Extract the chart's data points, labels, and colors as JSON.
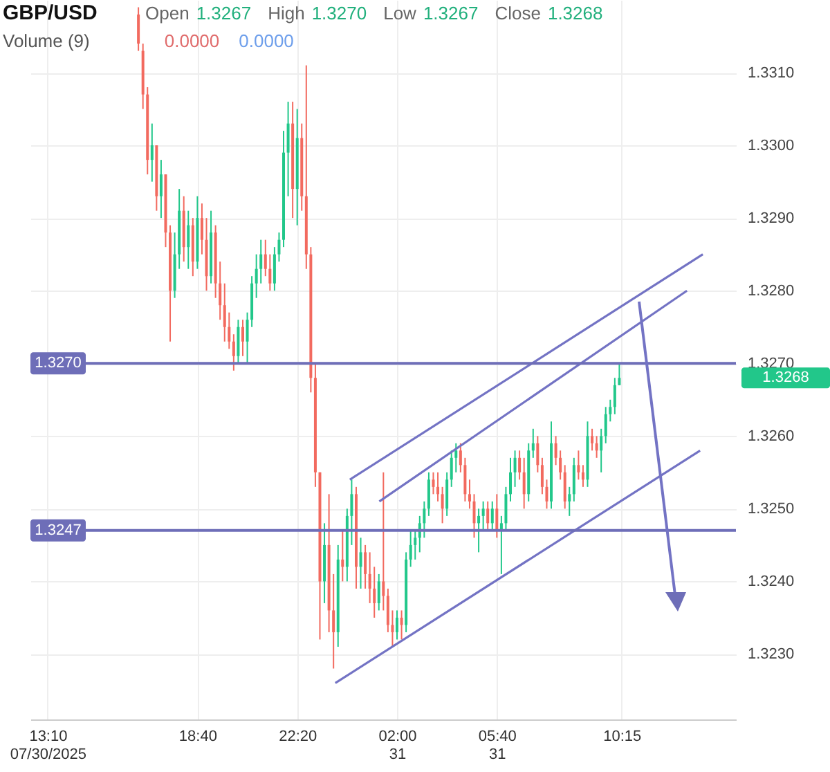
{
  "chart_data": {
    "type": "candlestick",
    "title": "GBP/USD",
    "x": [
      "2025-07-30T16:30",
      "2025-07-30T16:40",
      "2025-07-30T16:50",
      "2025-07-30T17:00",
      "2025-07-30T17:10",
      "2025-07-30T17:20",
      "2025-07-30T17:30",
      "2025-07-30T17:40",
      "2025-07-30T17:50",
      "2025-07-30T18:00",
      "2025-07-30T18:10",
      "2025-07-30T18:20",
      "2025-07-30T18:30",
      "2025-07-30T18:40",
      "2025-07-30T18:50",
      "2025-07-30T19:00",
      "2025-07-30T19:10",
      "2025-07-30T19:20",
      "2025-07-30T19:30",
      "2025-07-30T19:40",
      "2025-07-30T19:50",
      "2025-07-30T20:00",
      "2025-07-30T20:10",
      "2025-07-30T20:20",
      "2025-07-30T20:30",
      "2025-07-30T20:40",
      "2025-07-30T20:50",
      "2025-07-30T21:00",
      "2025-07-30T21:10",
      "2025-07-30T21:20",
      "2025-07-30T21:30",
      "2025-07-30T21:40",
      "2025-07-30T21:50",
      "2025-07-30T22:00",
      "2025-07-30T22:10",
      "2025-07-30T22:20",
      "2025-07-30T22:30",
      "2025-07-30T22:40",
      "2025-07-30T22:50",
      "2025-07-30T23:00",
      "2025-07-30T23:10",
      "2025-07-30T23:20",
      "2025-07-30T23:30",
      "2025-07-30T23:40",
      "2025-07-30T23:50",
      "2025-07-31T00:00",
      "2025-07-31T00:10",
      "2025-07-31T00:20",
      "2025-07-31T00:30",
      "2025-07-31T00:40",
      "2025-07-31T00:50",
      "2025-07-31T01:00",
      "2025-07-31T01:10",
      "2025-07-31T01:20",
      "2025-07-31T01:30",
      "2025-07-31T01:40",
      "2025-07-31T01:50",
      "2025-07-31T02:00",
      "2025-07-31T02:10",
      "2025-07-31T02:20",
      "2025-07-31T02:30",
      "2025-07-31T02:40",
      "2025-07-31T02:50",
      "2025-07-31T03:00",
      "2025-07-31T03:10",
      "2025-07-31T03:20",
      "2025-07-31T03:30",
      "2025-07-31T03:40",
      "2025-07-31T03:50",
      "2025-07-31T04:00",
      "2025-07-31T04:10",
      "2025-07-31T04:20",
      "2025-07-31T04:30",
      "2025-07-31T04:40",
      "2025-07-31T04:50",
      "2025-07-31T05:00",
      "2025-07-31T05:10",
      "2025-07-31T05:20",
      "2025-07-31T05:30",
      "2025-07-31T05:40",
      "2025-07-31T05:50",
      "2025-07-31T06:00",
      "2025-07-31T06:10",
      "2025-07-31T06:20",
      "2025-07-31T06:30",
      "2025-07-31T06:40",
      "2025-07-31T06:50",
      "2025-07-31T07:00",
      "2025-07-31T07:10",
      "2025-07-31T07:20",
      "2025-07-31T07:30",
      "2025-07-31T07:40",
      "2025-07-31T07:50",
      "2025-07-31T08:00",
      "2025-07-31T08:10",
      "2025-07-31T08:20",
      "2025-07-31T08:30",
      "2025-07-31T08:40",
      "2025-07-31T08:50",
      "2025-07-31T09:00",
      "2025-07-31T09:10",
      "2025-07-31T09:20",
      "2025-07-31T09:30",
      "2025-07-31T09:40",
      "2025-07-31T09:50",
      "2025-07-31T10:00",
      "2025-07-31T10:10"
    ],
    "ohlc": [
      [
        1.3318,
        1.3319,
        1.3313,
        1.3314
      ],
      [
        1.3313,
        1.3314,
        1.3305,
        1.3307
      ],
      [
        1.3307,
        1.3308,
        1.3296,
        1.3298
      ],
      [
        1.3298,
        1.3303,
        1.3295,
        1.33
      ],
      [
        1.33,
        1.33,
        1.3291,
        1.3293
      ],
      [
        1.3293,
        1.3298,
        1.329,
        1.3296
      ],
      [
        1.3296,
        1.3296,
        1.3286,
        1.3288
      ],
      [
        1.3288,
        1.3289,
        1.3273,
        1.328
      ],
      [
        1.328,
        1.3288,
        1.3279,
        1.3285
      ],
      [
        1.3285,
        1.3294,
        1.3283,
        1.3291
      ],
      [
        1.3291,
        1.3293,
        1.3284,
        1.3286
      ],
      [
        1.3286,
        1.3291,
        1.3283,
        1.3289
      ],
      [
        1.3289,
        1.329,
        1.3282,
        1.3284
      ],
      [
        1.3284,
        1.3293,
        1.3283,
        1.329
      ],
      [
        1.329,
        1.3292,
        1.3285,
        1.3287
      ],
      [
        1.3287,
        1.329,
        1.328,
        1.3282
      ],
      [
        1.3282,
        1.3291,
        1.3281,
        1.3288
      ],
      [
        1.3288,
        1.3289,
        1.3279,
        1.3281
      ],
      [
        1.3281,
        1.3284,
        1.3276,
        1.3278
      ],
      [
        1.3278,
        1.3281,
        1.3273,
        1.3275
      ],
      [
        1.3275,
        1.3277,
        1.3272,
        1.3273
      ],
      [
        1.3273,
        1.3274,
        1.3269,
        1.3271
      ],
      [
        1.3271,
        1.3276,
        1.327,
        1.3275
      ],
      [
        1.3275,
        1.3276,
        1.3271,
        1.3273
      ],
      [
        1.3273,
        1.3277,
        1.327,
        1.3276
      ],
      [
        1.3276,
        1.3282,
        1.3275,
        1.3281
      ],
      [
        1.3281,
        1.3285,
        1.3279,
        1.3283
      ],
      [
        1.3283,
        1.3287,
        1.3281,
        1.3285
      ],
      [
        1.3285,
        1.3287,
        1.3282,
        1.3283
      ],
      [
        1.3283,
        1.3285,
        1.328,
        1.3281
      ],
      [
        1.3281,
        1.3286,
        1.328,
        1.3285
      ],
      [
        1.3285,
        1.3288,
        1.3284,
        1.3287
      ],
      [
        1.3287,
        1.3302,
        1.3286,
        1.3299
      ],
      [
        1.3299,
        1.3306,
        1.3293,
        1.3303
      ],
      [
        1.3303,
        1.3306,
        1.329,
        1.3294
      ],
      [
        1.3294,
        1.3305,
        1.3289,
        1.3301
      ],
      [
        1.3301,
        1.3303,
        1.3291,
        1.3293
      ],
      [
        1.3293,
        1.3311,
        1.3283,
        1.3285
      ],
      [
        1.3285,
        1.3286,
        1.3266,
        1.3268
      ],
      [
        1.3268,
        1.327,
        1.3253,
        1.3255
      ],
      [
        1.3255,
        1.3255,
        1.3232,
        1.324
      ],
      [
        1.324,
        1.3248,
        1.3237,
        1.3245
      ],
      [
        1.3245,
        1.3252,
        1.3233,
        1.3236
      ],
      [
        1.3236,
        1.3241,
        1.3228,
        1.3233
      ],
      [
        1.3233,
        1.3245,
        1.3231,
        1.3243
      ],
      [
        1.3243,
        1.3247,
        1.324,
        1.3242
      ],
      [
        1.3242,
        1.325,
        1.324,
        1.3249
      ],
      [
        1.3249,
        1.3254,
        1.3245,
        1.3252
      ],
      [
        1.3252,
        1.3253,
        1.3239,
        1.3242
      ],
      [
        1.3242,
        1.3246,
        1.3239,
        1.3244
      ],
      [
        1.3244,
        1.3245,
        1.3239,
        1.3241
      ],
      [
        1.3241,
        1.3244,
        1.3237,
        1.3239
      ],
      [
        1.3239,
        1.3242,
        1.3235,
        1.3237
      ],
      [
        1.3237,
        1.3241,
        1.3236,
        1.324
      ],
      [
        1.324,
        1.3255,
        1.3236,
        1.3238
      ],
      [
        1.3238,
        1.3239,
        1.3233,
        1.3234
      ],
      [
        1.3234,
        1.3236,
        1.3231,
        1.3233
      ],
      [
        1.3233,
        1.3236,
        1.3232,
        1.3235
      ],
      [
        1.3235,
        1.3236,
        1.3232,
        1.3234
      ],
      [
        1.3234,
        1.3244,
        1.3233,
        1.3243
      ],
      [
        1.3243,
        1.3247,
        1.3242,
        1.3245
      ],
      [
        1.3245,
        1.3247,
        1.3243,
        1.3246
      ],
      [
        1.3246,
        1.3249,
        1.3244,
        1.3248
      ],
      [
        1.3248,
        1.3251,
        1.3246,
        1.325
      ],
      [
        1.325,
        1.3255,
        1.3249,
        1.3254
      ],
      [
        1.3254,
        1.3255,
        1.3252,
        1.3253
      ],
      [
        1.3253,
        1.3255,
        1.3251,
        1.3252
      ],
      [
        1.3252,
        1.3253,
        1.3248,
        1.325
      ],
      [
        1.325,
        1.3255,
        1.3249,
        1.3254
      ],
      [
        1.3254,
        1.3258,
        1.3253,
        1.3257
      ],
      [
        1.3257,
        1.3259,
        1.3255,
        1.3258
      ],
      [
        1.3258,
        1.3259,
        1.3255,
        1.3256
      ],
      [
        1.3256,
        1.3257,
        1.3251,
        1.3252
      ],
      [
        1.3252,
        1.3254,
        1.325,
        1.3251
      ],
      [
        1.3251,
        1.3252,
        1.3246,
        1.3248
      ],
      [
        1.3248,
        1.325,
        1.3244,
        1.3249
      ],
      [
        1.3249,
        1.3251,
        1.3247,
        1.325
      ],
      [
        1.325,
        1.3251,
        1.3247,
        1.3248
      ],
      [
        1.3248,
        1.3251,
        1.3247,
        1.325
      ],
      [
        1.325,
        1.3252,
        1.3246,
        1.3247
      ],
      [
        1.3247,
        1.3249,
        1.3241,
        1.3248
      ],
      [
        1.3248,
        1.3253,
        1.3247,
        1.3252
      ],
      [
        1.3252,
        1.3257,
        1.3251,
        1.3255
      ],
      [
        1.3255,
        1.3258,
        1.3253,
        1.3257
      ],
      [
        1.3257,
        1.3258,
        1.3254,
        1.3255
      ],
      [
        1.3255,
        1.3257,
        1.325,
        1.3252
      ],
      [
        1.3252,
        1.3259,
        1.3251,
        1.3258
      ],
      [
        1.3258,
        1.3261,
        1.3257,
        1.3259
      ],
      [
        1.3259,
        1.326,
        1.3255,
        1.3256
      ],
      [
        1.3256,
        1.3257,
        1.3252,
        1.3253
      ],
      [
        1.3253,
        1.3254,
        1.325,
        1.3251
      ],
      [
        1.3251,
        1.3262,
        1.325,
        1.3259
      ],
      [
        1.3259,
        1.326,
        1.3256,
        1.3257
      ],
      [
        1.3257,
        1.3258,
        1.3254,
        1.3255
      ],
      [
        1.3255,
        1.3256,
        1.325,
        1.3251
      ],
      [
        1.3251,
        1.3253,
        1.3249,
        1.3252
      ],
      [
        1.3252,
        1.3257,
        1.3251,
        1.3256
      ],
      [
        1.3256,
        1.3258,
        1.3254,
        1.3255
      ],
      [
        1.3255,
        1.3256,
        1.3253,
        1.3254
      ],
      [
        1.3254,
        1.3262,
        1.3253,
        1.326
      ],
      [
        1.326,
        1.3261,
        1.3258,
        1.3259
      ],
      [
        1.3259,
        1.326,
        1.3257,
        1.3258
      ],
      [
        1.3258,
        1.3261,
        1.3255,
        1.326
      ],
      [
        1.326,
        1.3264,
        1.3259,
        1.3263
      ],
      [
        1.3263,
        1.3265,
        1.3262,
        1.3264
      ],
      [
        1.3264,
        1.3268,
        1.3263,
        1.3267
      ],
      [
        1.3267,
        1.327,
        1.3267,
        1.3268
      ]
    ],
    "colors": [
      "#f26a5f",
      "#f26a5f",
      "#f26a5f",
      "#22c78a",
      "#f26a5f",
      "#22c78a",
      "#f26a5f",
      "#f26a5f",
      "#22c78a",
      "#22c78a",
      "#f26a5f",
      "#22c78a",
      "#f26a5f",
      "#22c78a",
      "#f26a5f",
      "#f26a5f",
      "#22c78a",
      "#f26a5f",
      "#f26a5f",
      "#f26a5f",
      "#f26a5f",
      "#f26a5f",
      "#22c78a",
      "#f26a5f",
      "#22c78a",
      "#22c78a",
      "#22c78a",
      "#22c78a",
      "#f26a5f",
      "#f26a5f",
      "#22c78a",
      "#22c78a",
      "#22c78a",
      "#22c78a",
      "#f26a5f",
      "#22c78a",
      "#f26a5f",
      "#f26a5f",
      "#f26a5f",
      "#f26a5f",
      "#f26a5f",
      "#22c78a",
      "#f26a5f",
      "#f26a5f",
      "#22c78a",
      "#f26a5f",
      "#22c78a",
      "#22c78a",
      "#f26a5f",
      "#22c78a",
      "#f26a5f",
      "#f26a5f",
      "#f26a5f",
      "#22c78a",
      "#f26a5f",
      "#f26a5f",
      "#f26a5f",
      "#22c78a",
      "#f26a5f",
      "#22c78a",
      "#22c78a",
      "#22c78a",
      "#22c78a",
      "#22c78a",
      "#22c78a",
      "#f26a5f",
      "#f26a5f",
      "#f26a5f",
      "#22c78a",
      "#22c78a",
      "#22c78a",
      "#f26a5f",
      "#f26a5f",
      "#f26a5f",
      "#f26a5f",
      "#22c78a",
      "#22c78a",
      "#f26a5f",
      "#22c78a",
      "#f26a5f",
      "#22c78a",
      "#22c78a",
      "#22c78a",
      "#22c78a",
      "#f26a5f",
      "#f26a5f",
      "#22c78a",
      "#22c78a",
      "#f26a5f",
      "#f26a5f",
      "#f26a5f",
      "#22c78a",
      "#f26a5f",
      "#f26a5f",
      "#f26a5f",
      "#22c78a",
      "#22c78a",
      "#f26a5f",
      "#f26a5f",
      "#22c78a",
      "#f26a5f",
      "#f26a5f",
      "#22c78a",
      "#22c78a",
      "#22c78a",
      "#22c78a",
      "#22c78a"
    ],
    "series": [
      {
        "type": "line",
        "color": "#7373c4",
        "x": [
          "2025-07-31T00:16",
          "2025-07-31T13:14"
        ],
        "values": [
          1.3254,
          1.3285
        ]
      },
      {
        "type": "line",
        "color": "#7373c4",
        "x": [
          "2025-07-31T01:21",
          "2025-07-31T12:39"
        ],
        "values": [
          1.3251,
          1.328
        ]
      },
      {
        "type": "line",
        "color": "#7373c4",
        "x": [
          "2025-07-30T23:44",
          "2025-07-31T13:08"
        ],
        "values": [
          1.3226,
          1.3258
        ]
      }
    ],
    "xlim": [
      "2025-07-30T12:32",
      "2025-07-31T14:27"
    ],
    "xticks": [
      {
        "value": "2025-07-30T13:10",
        "label": "13:10\n07/30/2025"
      },
      {
        "value": "2025-07-30T18:40",
        "label": "18:40"
      },
      {
        "value": "2025-07-30T22:20",
        "label": "22:20"
      },
      {
        "value": "2025-07-31T02:00",
        "label": "02:00\n31"
      },
      {
        "value": "2025-07-31T05:40",
        "label": "05:40\n31"
      },
      {
        "value": "2025-07-31T10:15",
        "label": "10:15"
      }
    ],
    "ylim": [
      1.3221,
      1.332
    ],
    "yticks": [
      {
        "value": 1.323,
        "label": "1.3230"
      },
      {
        "value": 1.324,
        "label": "1.3240"
      },
      {
        "value": 1.325,
        "label": "1.3250"
      },
      {
        "value": 1.326,
        "label": "1.3260"
      },
      {
        "value": 1.327,
        "label": "1.3270"
      },
      {
        "value": 1.328,
        "label": "1.3280"
      },
      {
        "value": 1.329,
        "label": "1.3290"
      },
      {
        "value": 1.33,
        "label": "1.3300"
      },
      {
        "value": 1.331,
        "label": "1.3310"
      }
    ],
    "ref_lines": [
      {
        "axis": "y",
        "value": 1.327,
        "label": "1.3270",
        "color": "#6e6eb8"
      },
      {
        "axis": "y",
        "value": 1.3247,
        "label": "1.3247",
        "color": "#6e6eb8"
      }
    ],
    "annotations": [
      "Open 1.3267",
      "High 1.3270",
      "Low 1.3267",
      "Close 1.3268",
      "Volume (9)",
      "0.0000",
      "0.0000",
      "1.3268"
    ],
    "grid": true
  }
}
